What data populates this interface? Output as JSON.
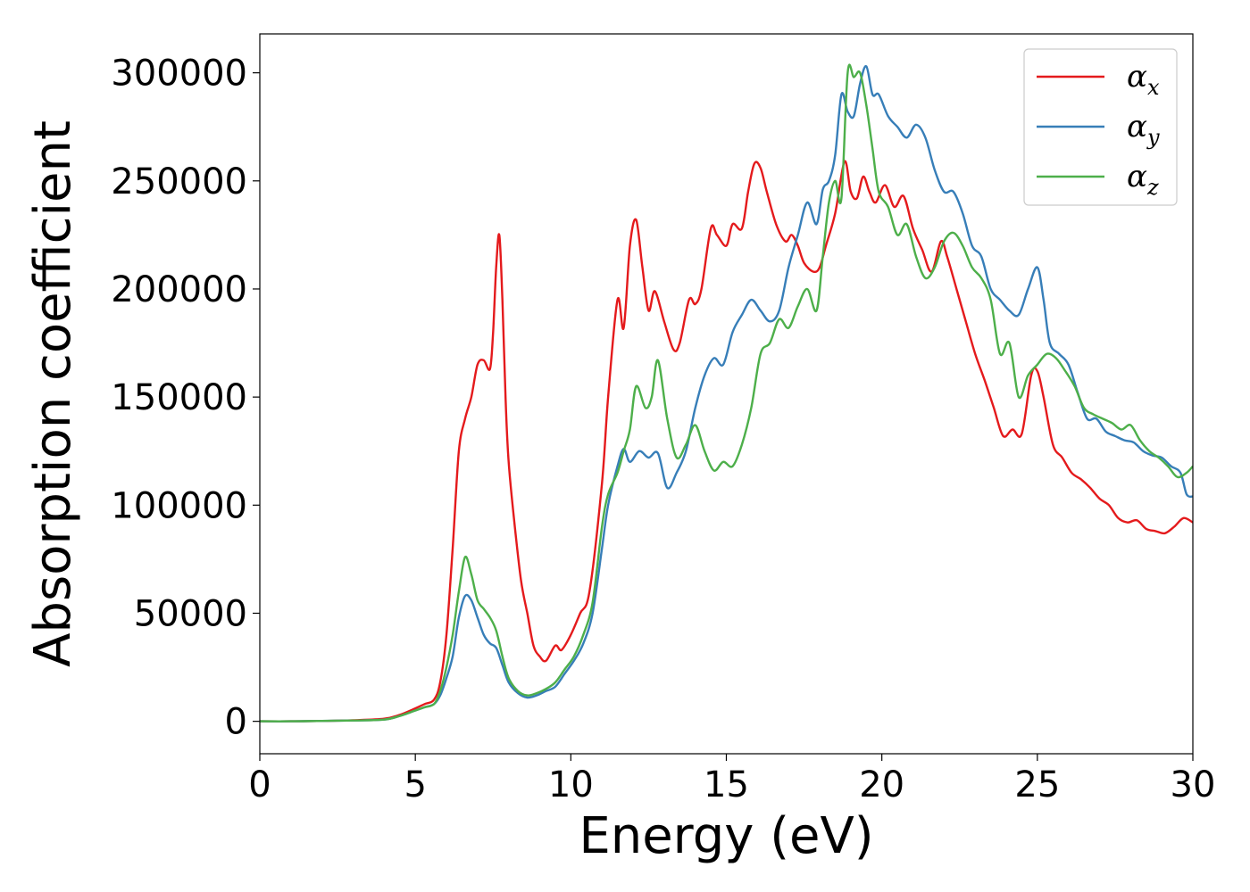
{
  "chart_data": {
    "type": "line",
    "xlabel": "Energy (eV)",
    "ylabel": "Absorption coefficient",
    "xlim": [
      0,
      30
    ],
    "ylim": [
      -15000,
      318000
    ],
    "xticks": [
      0,
      5,
      10,
      15,
      20,
      25,
      30
    ],
    "xtick_labels": [
      "0",
      "5",
      "10",
      "15",
      "20",
      "25",
      "30"
    ],
    "yticks": [
      0,
      50000,
      100000,
      150000,
      200000,
      250000,
      300000
    ],
    "ytick_labels": [
      "0",
      "50000",
      "100000",
      "150000",
      "200000",
      "250000",
      "300000"
    ],
    "grid": false,
    "legend_position": "top-right",
    "series": [
      {
        "name": "α",
        "subscript": "x",
        "color": "#e41a1c",
        "x": [
          0,
          1,
          2,
          3,
          4,
          4.5,
          5,
          5.3,
          5.6,
          5.8,
          6,
          6.2,
          6.4,
          6.6,
          6.8,
          7,
          7.2,
          7.4,
          7.5,
          7.6,
          7.7,
          7.8,
          7.9,
          8,
          8.2,
          8.4,
          8.6,
          8.8,
          9,
          9.2,
          9.5,
          9.7,
          10,
          10.3,
          10.6,
          11,
          11.2,
          11.5,
          11.7,
          11.9,
          12.1,
          12.3,
          12.5,
          12.7,
          13,
          13.3,
          13.5,
          13.8,
          14,
          14.2,
          14.5,
          14.7,
          15,
          15.2,
          15.5,
          15.7,
          15.9,
          16.1,
          16.3,
          16.6,
          16.9,
          17.1,
          17.3,
          17.5,
          17.8,
          18,
          18.2,
          18.5,
          18.8,
          19,
          19.2,
          19.4,
          19.6,
          19.8,
          20.1,
          20.4,
          20.7,
          21,
          21.3,
          21.6,
          21.9,
          22.1,
          22.4,
          22.7,
          23,
          23.3,
          23.6,
          23.9,
          24.2,
          24.5,
          24.8,
          25,
          25.2,
          25.5,
          25.8,
          26.1,
          26.4,
          26.7,
          27,
          27.3,
          27.6,
          27.9,
          28.2,
          28.5,
          28.8,
          29.1,
          29.4,
          29.7,
          30
        ],
        "y": [
          0,
          0,
          200,
          500,
          1200,
          3000,
          6000,
          8000,
          10000,
          18000,
          40000,
          80000,
          125000,
          140000,
          150000,
          165000,
          167000,
          163000,
          180000,
          210000,
          225000,
          195000,
          150000,
          120000,
          90000,
          65000,
          50000,
          35000,
          30000,
          28000,
          35000,
          33000,
          40000,
          50000,
          60000,
          110000,
          150000,
          195000,
          182000,
          220000,
          232000,
          210000,
          190000,
          199000,
          185000,
          172000,
          175000,
          195000,
          193000,
          200000,
          228000,
          225000,
          220000,
          230000,
          228000,
          245000,
          258000,
          256000,
          245000,
          230000,
          222000,
          225000,
          220000,
          212000,
          208000,
          210000,
          220000,
          235000,
          259000,
          245000,
          242000,
          252000,
          245000,
          240000,
          248000,
          238000,
          243000,
          228000,
          218000,
          208000,
          222000,
          215000,
          200000,
          185000,
          170000,
          158000,
          145000,
          132000,
          135000,
          133000,
          160000,
          162000,
          150000,
          128000,
          122000,
          115000,
          112000,
          108000,
          103000,
          100000,
          94000,
          92000,
          93000,
          89000,
          88000,
          87000,
          90000,
          94000,
          92000
        ]
      },
      {
        "name": "α",
        "subscript": "y",
        "color": "#377eb8",
        "x": [
          0,
          1,
          2,
          3,
          4,
          4.5,
          5,
          5.3,
          5.6,
          5.8,
          6,
          6.2,
          6.4,
          6.6,
          6.8,
          7,
          7.2,
          7.4,
          7.6,
          7.8,
          8,
          8.3,
          8.6,
          8.9,
          9.2,
          9.5,
          9.8,
          10.1,
          10.4,
          10.7,
          11,
          11.2,
          11.5,
          11.7,
          11.9,
          12.2,
          12.5,
          12.8,
          13.1,
          13.4,
          13.7,
          14,
          14.3,
          14.6,
          14.9,
          15.2,
          15.5,
          15.8,
          16.1,
          16.4,
          16.7,
          17,
          17.3,
          17.6,
          17.9,
          18.1,
          18.3,
          18.5,
          18.7,
          18.9,
          19.1,
          19.3,
          19.5,
          19.7,
          19.9,
          20.2,
          20.5,
          20.8,
          21.1,
          21.4,
          21.7,
          22,
          22.3,
          22.6,
          22.9,
          23.2,
          23.5,
          23.8,
          24.1,
          24.4,
          24.7,
          25,
          25.2,
          25.4,
          25.7,
          26,
          26.3,
          26.6,
          26.9,
          27.2,
          27.5,
          27.8,
          28.1,
          28.4,
          28.7,
          29,
          29.3,
          29.6,
          29.8,
          30
        ],
        "y": [
          0,
          0,
          200,
          400,
          800,
          2500,
          5000,
          6500,
          8000,
          12000,
          20000,
          30000,
          48000,
          58000,
          56000,
          48000,
          40000,
          36000,
          34000,
          26000,
          18000,
          13000,
          11000,
          12000,
          14000,
          16000,
          22000,
          28000,
          36000,
          50000,
          80000,
          100000,
          118000,
          126000,
          120000,
          125000,
          122000,
          124000,
          108000,
          115000,
          125000,
          145000,
          160000,
          168000,
          165000,
          180000,
          188000,
          195000,
          190000,
          185000,
          190000,
          210000,
          225000,
          240000,
          230000,
          246000,
          250000,
          262000,
          290000,
          282000,
          280000,
          295000,
          303000,
          290000,
          290000,
          280000,
          275000,
          270000,
          276000,
          270000,
          255000,
          245000,
          245000,
          235000,
          220000,
          215000,
          200000,
          195000,
          190000,
          188000,
          200000,
          210000,
          195000,
          175000,
          170000,
          165000,
          152000,
          140000,
          140000,
          134000,
          132000,
          130000,
          129000,
          125000,
          123000,
          122000,
          118000,
          115000,
          105000,
          104000
        ]
      },
      {
        "name": "α",
        "subscript": "z",
        "color": "#4daf4a",
        "x": [
          0,
          1,
          2,
          3,
          4,
          4.5,
          5,
          5.3,
          5.6,
          5.8,
          6,
          6.2,
          6.4,
          6.6,
          6.8,
          7,
          7.2,
          7.4,
          7.6,
          7.8,
          8,
          8.3,
          8.6,
          8.9,
          9.2,
          9.5,
          9.8,
          10.1,
          10.4,
          10.7,
          11,
          11.2,
          11.5,
          11.7,
          11.9,
          12.1,
          12.4,
          12.6,
          12.8,
          13.1,
          13.4,
          13.7,
          14,
          14.3,
          14.6,
          14.9,
          15.2,
          15.5,
          15.8,
          16.1,
          16.4,
          16.7,
          17,
          17.3,
          17.6,
          17.9,
          18.1,
          18.3,
          18.5,
          18.7,
          18.9,
          19.1,
          19.3,
          19.5,
          19.7,
          19.9,
          20.2,
          20.5,
          20.8,
          21.1,
          21.4,
          21.7,
          22,
          22.3,
          22.6,
          22.9,
          23.2,
          23.5,
          23.8,
          24.1,
          24.4,
          24.7,
          25,
          25.3,
          25.6,
          25.9,
          26.2,
          26.5,
          26.8,
          27.1,
          27.4,
          27.7,
          28,
          28.3,
          28.6,
          28.9,
          29.2,
          29.5,
          29.8,
          30
        ],
        "y": [
          0,
          0,
          200,
          400,
          800,
          2500,
          5000,
          6500,
          8000,
          14000,
          25000,
          40000,
          60000,
          76000,
          68000,
          56000,
          52000,
          48000,
          42000,
          30000,
          20000,
          14000,
          12000,
          13000,
          15000,
          18000,
          24000,
          30000,
          40000,
          55000,
          90000,
          105000,
          115000,
          125000,
          135000,
          155000,
          145000,
          150000,
          167000,
          140000,
          122000,
          128000,
          137000,
          125000,
          116000,
          120000,
          118000,
          128000,
          145000,
          170000,
          175000,
          186000,
          182000,
          192000,
          200000,
          190000,
          215000,
          240000,
          250000,
          242000,
          300000,
          298000,
          300000,
          285000,
          265000,
          245000,
          238000,
          225000,
          230000,
          215000,
          205000,
          210000,
          222000,
          226000,
          220000,
          210000,
          205000,
          195000,
          170000,
          175000,
          150000,
          160000,
          165000,
          170000,
          168000,
          162000,
          155000,
          145000,
          142000,
          140000,
          138000,
          135000,
          137000,
          130000,
          125000,
          122000,
          118000,
          113000,
          115000,
          118000
        ]
      }
    ]
  }
}
